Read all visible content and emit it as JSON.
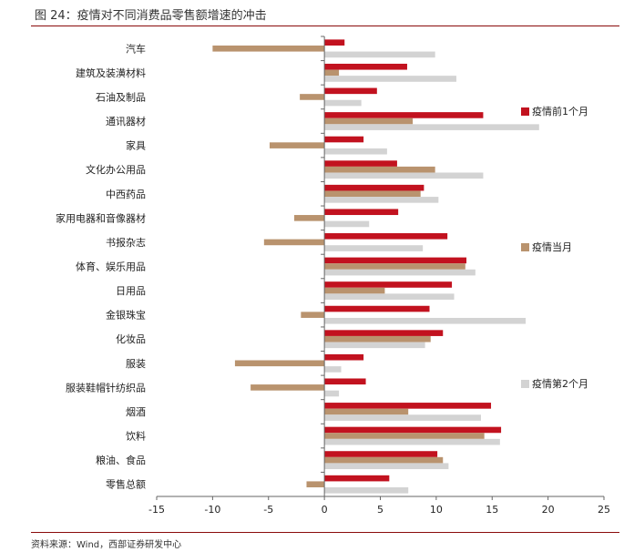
{
  "figure": {
    "title": "图 24：疫情对不同消费品零售额增速的冲击",
    "source": "资料来源：Wind，西部证券研发中心"
  },
  "colors": {
    "s1": "#c2121f",
    "s2": "#b9936e",
    "s3": "#d3d3d3",
    "rule": "#8a0b0b"
  },
  "chart_data": {
    "type": "bar",
    "orientation": "horizontal",
    "categories": [
      "汽车",
      "建筑及装潢材料",
      "石油及制品",
      "通讯器材",
      "家具",
      "文化办公用品",
      "中西药品",
      "家用电器和音像器材",
      "书报杂志",
      "体育、娱乐用品",
      "日用品",
      "金银珠宝",
      "化妆品",
      "服装",
      "服装鞋帽针纺织品",
      "烟酒",
      "饮料",
      "粮油、食品",
      "零售总额"
    ],
    "series": [
      {
        "name": "疫情前1个月",
        "values": [
          1.8,
          7.4,
          4.7,
          14.2,
          3.5,
          6.5,
          8.9,
          6.6,
          11.0,
          12.7,
          11.4,
          9.4,
          10.6,
          3.5,
          3.7,
          14.9,
          15.8,
          10.1,
          5.8
        ]
      },
      {
        "name": "疫情当月",
        "values": [
          -10.0,
          1.3,
          -2.2,
          7.9,
          -4.9,
          9.9,
          8.6,
          -2.7,
          -5.4,
          12.6,
          5.4,
          -2.1,
          9.5,
          -8.0,
          -6.6,
          7.5,
          14.3,
          10.6,
          -1.6
        ]
      },
      {
        "name": "疫情第2个月",
        "values": [
          9.9,
          11.8,
          3.3,
          19.2,
          5.6,
          14.2,
          10.2,
          4.0,
          8.8,
          13.5,
          11.6,
          18.0,
          9.0,
          1.5,
          1.3,
          14.0,
          15.7,
          11.1,
          7.5
        ]
      }
    ],
    "xlim": [
      -15,
      25
    ],
    "xticks": [
      "-15",
      "-10",
      "-5",
      "0",
      "5",
      "10",
      "15",
      "20",
      "25"
    ],
    "legend_position": "right",
    "grid": false
  }
}
